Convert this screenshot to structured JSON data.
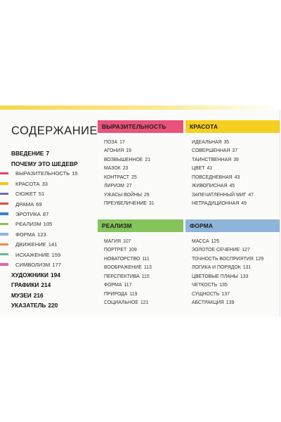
{
  "toc": {
    "title": "СОДЕРЖАНИЕ",
    "items": [
      {
        "label": "ВВЕДЕНИЕ",
        "page": "7",
        "bold": true,
        "color": ""
      },
      {
        "label": "ПОЧЕМУ ЭТО ШЕДЕВР",
        "page": "",
        "bold": true,
        "color": ""
      },
      {
        "label": "ВЫРАЗИТЕЛЬНОСТЬ",
        "page": "15",
        "bold": false,
        "color": "#e0446f"
      },
      {
        "label": "КРАСОТА",
        "page": "33",
        "bold": false,
        "color": "#f2c81b"
      },
      {
        "label": "СЮЖЕТ",
        "page": "51",
        "bold": false,
        "color": "#6d6fb3"
      },
      {
        "label": "ДРАМА",
        "page": "69",
        "bold": false,
        "color": "#e8463a"
      },
      {
        "label": "ЭРОТИКА",
        "page": "87",
        "bold": false,
        "color": "#2f86c6"
      },
      {
        "label": "РЕАЛИЗМ",
        "page": "105",
        "bold": false,
        "color": "#86c15a"
      },
      {
        "label": "ФОРМА",
        "page": "123",
        "bold": false,
        "color": "#8db6dc"
      },
      {
        "label": "ДВИЖЕНИЕ",
        "page": "141",
        "bold": false,
        "color": "#f08a48"
      },
      {
        "label": "ИСКАЖЕНИЕ",
        "page": "159",
        "bold": false,
        "color": "#67b89e"
      },
      {
        "label": "СИМВОЛИЗМ",
        "page": "177",
        "bold": false,
        "color": "#e16aa0"
      },
      {
        "label": "ХУДОЖНИКИ",
        "page": "194",
        "bold": true,
        "color": ""
      },
      {
        "label": "ГРАФИКИ",
        "page": "214",
        "bold": true,
        "color": ""
      },
      {
        "label": "МУЗЕИ",
        "page": "216",
        "bold": true,
        "color": ""
      },
      {
        "label": "УКАЗАТЕЛЬ",
        "page": "220",
        "bold": true,
        "color": ""
      }
    ]
  },
  "sections": [
    {
      "title": "ВЫРАЗИТЕЛЬНОСТЬ",
      "color": "#e9527a",
      "items": [
        {
          "label": "ПОЗА",
          "page": "17"
        },
        {
          "label": "АГОНИЯ",
          "page": "19"
        },
        {
          "label": "ВОЗВЫШЕННОЕ",
          "page": "21"
        },
        {
          "label": "МАЗОК",
          "page": "23"
        },
        {
          "label": "КОНТРАСТ",
          "page": "25"
        },
        {
          "label": "ЛИРИЗМ",
          "page": "27"
        },
        {
          "label": "УЖАСЫ ВОЙНЫ",
          "page": "29"
        },
        {
          "label": "ПРЕУВЕЛИЧЕНИЕ",
          "page": "31"
        }
      ]
    },
    {
      "title": "КРАСОТА",
      "color": "#f5ce1f",
      "items": [
        {
          "label": "ИДЕАЛЬНАЯ",
          "page": "35"
        },
        {
          "label": "СОВЕРШЕННАЯ",
          "page": "37"
        },
        {
          "label": "ТАИНСТВЕННАЯ",
          "page": "39"
        },
        {
          "label": "ЦВЕТ",
          "page": "41"
        },
        {
          "label": "ПОВСЕДНЕВНАЯ",
          "page": "43"
        },
        {
          "label": "ЖИВОПИСНАЯ",
          "page": "45"
        },
        {
          "label": "ЗАПЕЧАТЛЕННЫЙ МИГ",
          "page": "47"
        },
        {
          "label": "НЕТРАДИЦИОННАЯ",
          "page": "49"
        }
      ]
    },
    {
      "title": "РЕАЛИЗМ",
      "color": "#84c45a",
      "items": [
        {
          "label": "МАГИЯ",
          "page": "107"
        },
        {
          "label": "ПОРТРЕТ",
          "page": "109"
        },
        {
          "label": "НОВАТОРСТВО",
          "page": "111"
        },
        {
          "label": "ВООБРАЖЕНИЕ",
          "page": "113"
        },
        {
          "label": "ПЕРСПЕКТИВА",
          "page": "115"
        },
        {
          "label": "ФОРМА",
          "page": "117"
        },
        {
          "label": "ПРИРОДА",
          "page": "119"
        },
        {
          "label": "СОЦИАЛЬНОЕ",
          "page": "121"
        }
      ]
    },
    {
      "title": "ФОРМА",
      "color": "#8fb4d9",
      "items": [
        {
          "label": "МАССА",
          "page": "125"
        },
        {
          "label": "ЗОЛОТОЕ СЕЧЕНИЕ",
          "page": "127"
        },
        {
          "label": "ТОЧНОСТЬ ВОСПРИЯТИЯ",
          "page": "129"
        },
        {
          "label": "ЛОГИКА И ПОРЯДОК",
          "page": "131"
        },
        {
          "label": "ЦВЕТОВЫЕ ПЛАНЫ",
          "page": "133"
        },
        {
          "label": "ЧЕТКОСТЬ",
          "page": "135"
        },
        {
          "label": "СУЩНОСТЬ",
          "page": "137"
        },
        {
          "label": "АБСТРАКЦИЯ",
          "page": "139"
        }
      ]
    }
  ]
}
